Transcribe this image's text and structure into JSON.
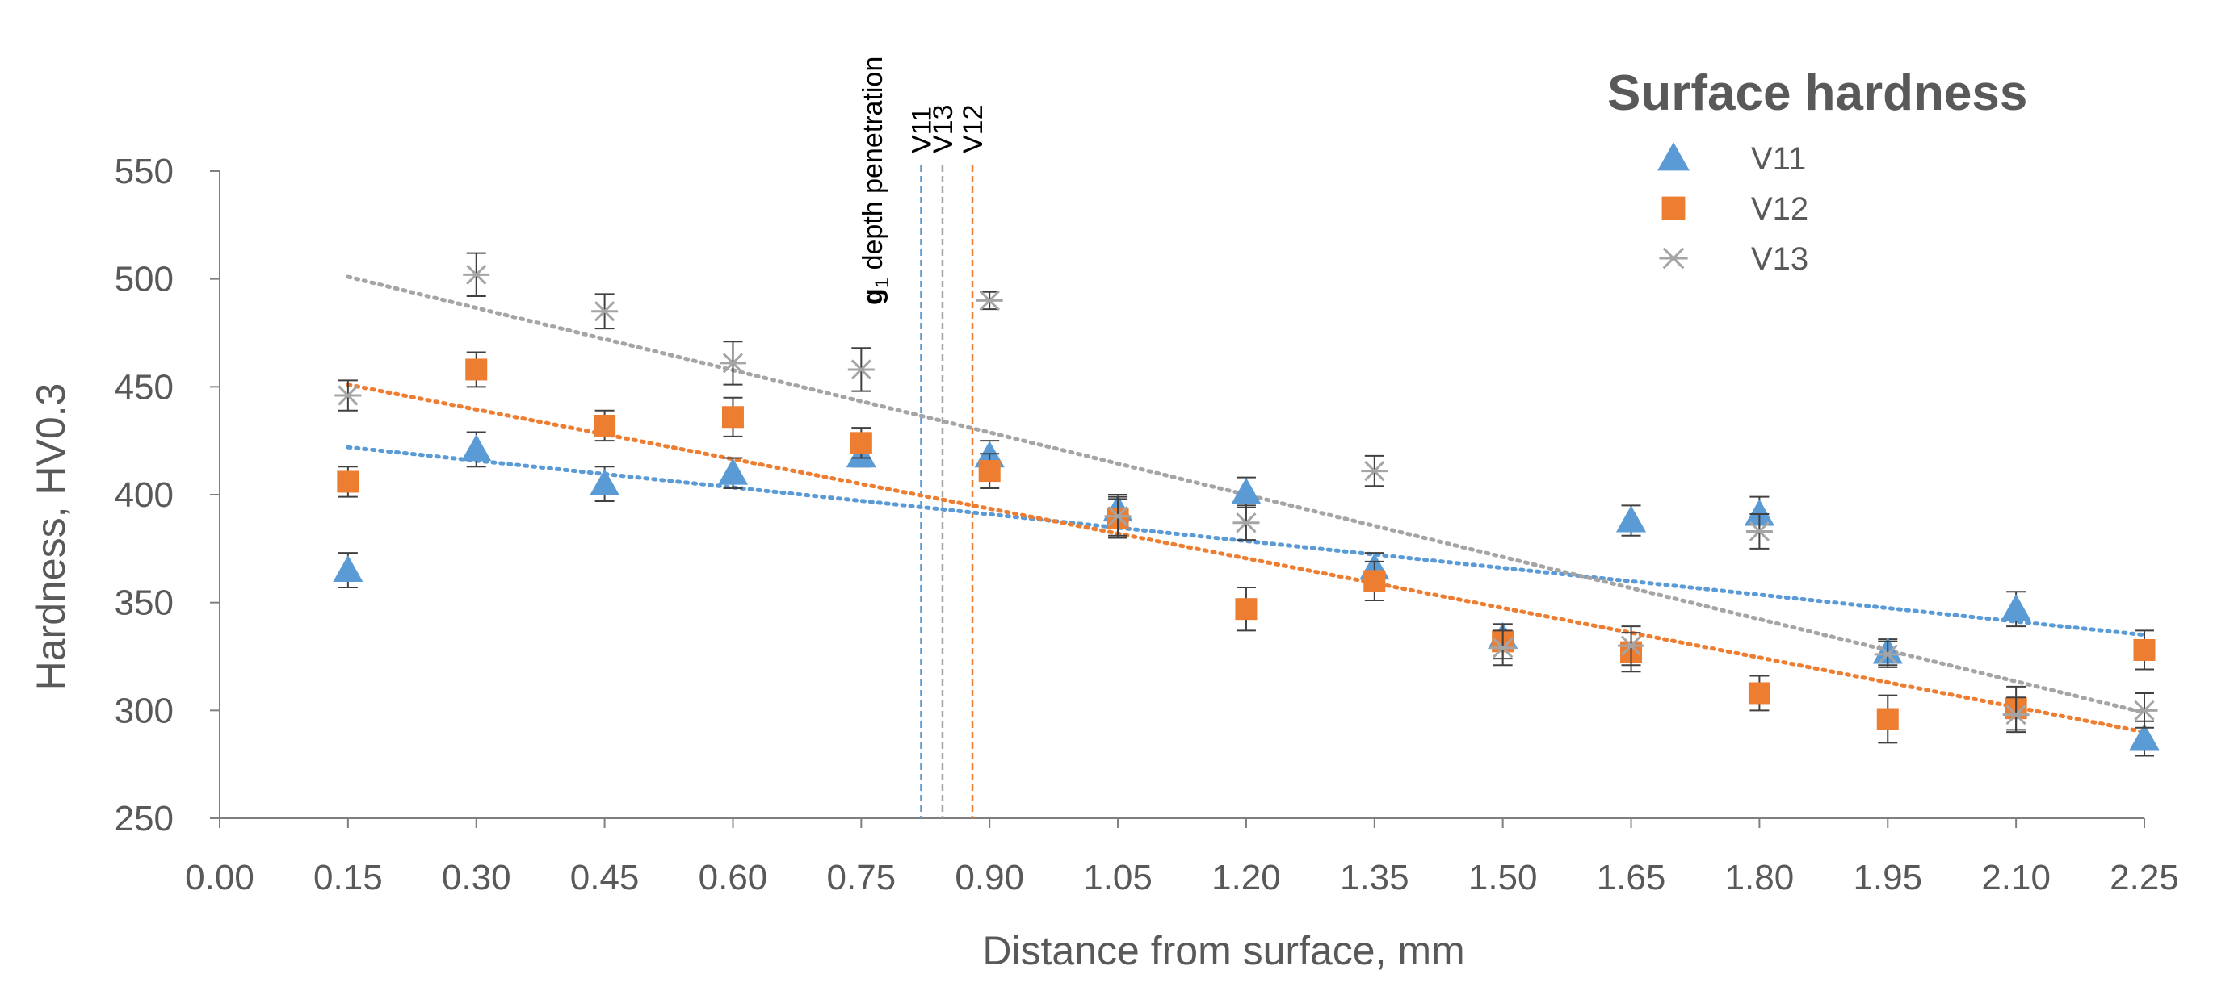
{
  "chart_data": {
    "type": "scatter",
    "title": "Surface hardness",
    "xlabel": "Distance from surface, mm",
    "ylabel": "Hardness, HV0.3",
    "xlim": [
      0,
      2.25
    ],
    "ylim": [
      250,
      550
    ],
    "x_ticks": [
      "0.00",
      "0.15",
      "0.30",
      "0.45",
      "0.60",
      "0.75",
      "0.90",
      "1.05",
      "1.20",
      "1.35",
      "1.50",
      "1.65",
      "1.80",
      "1.95",
      "2.10",
      "2.25"
    ],
    "y_ticks": [
      "250",
      "300",
      "350",
      "400",
      "450",
      "500",
      "550"
    ],
    "grid": false,
    "legend_position": "top-right",
    "series": [
      {
        "name": "V11",
        "marker": "triangle",
        "color": "#5B9BD5",
        "x": [
          0.15,
          0.3,
          0.45,
          0.6,
          0.75,
          0.9,
          1.05,
          1.2,
          1.35,
          1.5,
          1.65,
          1.8,
          1.95,
          2.1,
          2.25
        ],
        "y": [
          365,
          421,
          405,
          410,
          418,
          418,
          393,
          401,
          366,
          334,
          388,
          391,
          327,
          347,
          287
        ],
        "error": [
          8,
          8,
          8,
          7,
          5,
          7,
          7,
          7,
          7,
          6,
          7,
          8,
          6,
          8,
          8
        ],
        "trend": [
          422,
          335
        ]
      },
      {
        "name": "V12",
        "marker": "square",
        "color": "#ED7D31",
        "x": [
          0.15,
          0.3,
          0.45,
          0.6,
          0.75,
          0.9,
          1.05,
          1.2,
          1.35,
          1.5,
          1.65,
          1.8,
          1.95,
          2.1,
          2.25
        ],
        "y": [
          406,
          458,
          432,
          436,
          424,
          411,
          389,
          347,
          360,
          332,
          327,
          308,
          296,
          301,
          328
        ],
        "error": [
          7,
          8,
          7,
          9,
          7,
          8,
          9,
          10,
          9,
          8,
          9,
          8,
          11,
          10,
          9
        ],
        "trend": [
          451,
          290
        ]
      },
      {
        "name": "V13",
        "marker": "star",
        "color": "#A5A5A5",
        "x": [
          0.15,
          0.3,
          0.45,
          0.6,
          0.75,
          0.9,
          1.05,
          1.2,
          1.35,
          1.5,
          1.65,
          1.8,
          1.95,
          2.1,
          2.25
        ],
        "y": [
          446,
          502,
          485,
          461,
          458,
          490,
          390,
          387,
          411,
          329,
          330,
          383,
          326,
          298,
          300
        ],
        "error": [
          7,
          10,
          8,
          10,
          10,
          4,
          9,
          8,
          7,
          8,
          9,
          8,
          6,
          8,
          8
        ],
        "trend": [
          501,
          299
        ]
      }
    ],
    "vertical_lines": [
      {
        "label": "V11",
        "x": 0.82,
        "color": "#5B9BD5"
      },
      {
        "label": "V13",
        "x": 0.845,
        "color": "#A5A5A5"
      },
      {
        "label": "V12",
        "x": 0.88,
        "color": "#ED7D31"
      }
    ],
    "annotation": {
      "prefix": "g",
      "subscript": "1",
      "suffix": " depth penetration"
    }
  }
}
